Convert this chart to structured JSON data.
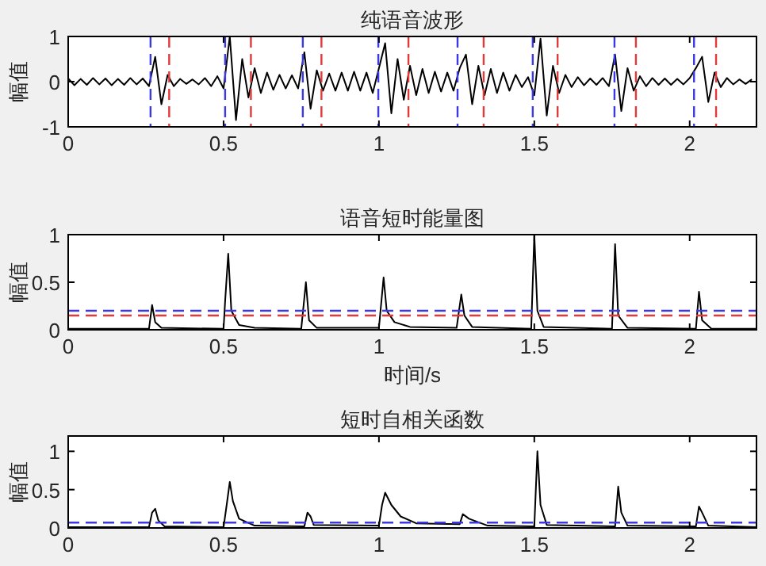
{
  "chart_data": [
    {
      "type": "line",
      "title": "纯语音波形",
      "ylabel": "幅值",
      "xlim": [
        0,
        2.215
      ],
      "ylim": [
        -1,
        1
      ],
      "xticks": [
        0,
        0.5,
        1,
        1.5,
        2
      ],
      "yticks": [
        -1,
        0,
        1
      ],
      "line_style": "solid",
      "marker": "none",
      "grid": false,
      "series": [
        {
          "color": "#000000",
          "x": [
            0,
            0.02,
            0.04,
            0.06,
            0.08,
            0.1,
            0.12,
            0.14,
            0.16,
            0.18,
            0.2,
            0.22,
            0.24,
            0.26,
            0.28,
            0.3,
            0.32,
            0.34,
            0.36,
            0.38,
            0.4,
            0.42,
            0.44,
            0.46,
            0.48,
            0.5,
            0.52,
            0.54,
            0.56,
            0.58,
            0.6,
            0.62,
            0.64,
            0.66,
            0.68,
            0.7,
            0.72,
            0.74,
            0.76,
            0.78,
            0.8,
            0.82,
            0.84,
            0.86,
            0.88,
            0.9,
            0.92,
            0.94,
            0.96,
            0.98,
            1,
            1.02,
            1.04,
            1.06,
            1.08,
            1.1,
            1.12,
            1.14,
            1.16,
            1.18,
            1.2,
            1.22,
            1.24,
            1.26,
            1.28,
            1.3,
            1.32,
            1.34,
            1.36,
            1.38,
            1.4,
            1.42,
            1.44,
            1.46,
            1.48,
            1.5,
            1.52,
            1.54,
            1.56,
            1.58,
            1.6,
            1.62,
            1.64,
            1.66,
            1.68,
            1.7,
            1.72,
            1.74,
            1.76,
            1.78,
            1.8,
            1.82,
            1.84,
            1.86,
            1.88,
            1.9,
            1.92,
            1.94,
            1.96,
            1.98,
            2,
            2.02,
            2.04,
            2.06,
            2.08,
            2.1,
            2.12,
            2.14,
            2.16,
            2.18,
            2.2
          ],
          "values": [
            0.07,
            -0.08,
            0.06,
            -0.07,
            0.08,
            -0.06,
            0.07,
            -0.08,
            0.06,
            -0.07,
            0.08,
            -0.06,
            0.07,
            -0.1,
            0.55,
            -0.5,
            0.15,
            -0.1,
            0.06,
            -0.05,
            0.05,
            -0.06,
            0.08,
            -0.1,
            0.12,
            -0.15,
            1.0,
            -0.85,
            0.5,
            -0.35,
            0.3,
            -0.25,
            0.2,
            -0.18,
            0.15,
            -0.15,
            0.14,
            -0.15,
            0.65,
            -0.6,
            0.25,
            -0.2,
            0.18,
            -0.2,
            0.2,
            -0.2,
            0.22,
            -0.2,
            0.2,
            -0.25,
            0.3,
            0.85,
            -0.7,
            0.5,
            -0.4,
            0.35,
            -0.3,
            0.28,
            -0.25,
            0.22,
            -0.22,
            0.2,
            -0.2,
            0.3,
            0.6,
            -0.5,
            0.35,
            -0.3,
            0.28,
            -0.25,
            0.2,
            -0.2,
            0.15,
            -0.12,
            0.1,
            -0.3,
            0.95,
            -0.75,
            0.35,
            -0.25,
            0.15,
            -0.12,
            0.1,
            -0.08,
            0.07,
            -0.07,
            0.08,
            -0.1,
            0.6,
            -0.65,
            0.3,
            -0.2,
            0.12,
            -0.1,
            0.08,
            -0.07,
            0.07,
            -0.07,
            0.06,
            -0.06,
            0.08,
            0.3,
            0.55,
            -0.45,
            0.2,
            -0.12,
            0.08,
            -0.06,
            0.05,
            -0.05,
            0.05
          ]
        }
      ],
      "ref_lines": [
        {
          "axis": "x",
          "value": 0.265,
          "color": "#3a3ae0",
          "line_style": "dashed"
        },
        {
          "axis": "x",
          "value": 0.325,
          "color": "#e03a3a",
          "line_style": "dashed"
        },
        {
          "axis": "x",
          "value": 0.505,
          "color": "#3a3ae0",
          "line_style": "dashed"
        },
        {
          "axis": "x",
          "value": 0.588,
          "color": "#e03a3a",
          "line_style": "dashed"
        },
        {
          "axis": "x",
          "value": 0.755,
          "color": "#3a3ae0",
          "line_style": "dashed"
        },
        {
          "axis": "x",
          "value": 0.815,
          "color": "#e03a3a",
          "line_style": "dashed"
        },
        {
          "axis": "x",
          "value": 0.998,
          "color": "#3a3ae0",
          "line_style": "dashed"
        },
        {
          "axis": "x",
          "value": 1.095,
          "color": "#e03a3a",
          "line_style": "dashed"
        },
        {
          "axis": "x",
          "value": 1.253,
          "color": "#3a3ae0",
          "line_style": "dashed"
        },
        {
          "axis": "x",
          "value": 1.337,
          "color": "#e03a3a",
          "line_style": "dashed"
        },
        {
          "axis": "x",
          "value": 1.495,
          "color": "#3a3ae0",
          "line_style": "dashed"
        },
        {
          "axis": "x",
          "value": 1.575,
          "color": "#e03a3a",
          "line_style": "dashed"
        },
        {
          "axis": "x",
          "value": 1.758,
          "color": "#3a3ae0",
          "line_style": "dashed"
        },
        {
          "axis": "x",
          "value": 1.827,
          "color": "#e03a3a",
          "line_style": "dashed"
        },
        {
          "axis": "x",
          "value": 2.014,
          "color": "#3a3ae0",
          "line_style": "dashed"
        },
        {
          "axis": "x",
          "value": 2.085,
          "color": "#e03a3a",
          "line_style": "dashed"
        }
      ]
    },
    {
      "type": "line",
      "title": "语音短时能量图",
      "ylabel": "幅值",
      "xlabel": "时间/s",
      "xlim": [
        0,
        2.215
      ],
      "ylim": [
        0,
        1
      ],
      "xticks": [
        0,
        0.5,
        1,
        1.5,
        2
      ],
      "yticks": [
        0,
        0.5,
        1
      ],
      "line_style": "solid",
      "marker": "none",
      "grid": false,
      "series": [
        {
          "color": "#000000",
          "x": [
            0,
            0.26,
            0.27,
            0.28,
            0.3,
            0.5,
            0.505,
            0.515,
            0.525,
            0.55,
            0.6,
            0.75,
            0.765,
            0.775,
            0.8,
            1.0,
            1.015,
            1.025,
            1.05,
            1.1,
            1.25,
            1.265,
            1.275,
            1.3,
            1.49,
            1.5,
            1.51,
            1.53,
            1.75,
            1.76,
            1.77,
            1.8,
            2.02,
            2.03,
            2.04,
            2.07,
            2.215
          ],
          "values": [
            0.01,
            0.01,
            0.26,
            0.08,
            0.02,
            0.01,
            0.3,
            0.8,
            0.2,
            0.05,
            0.02,
            0.01,
            0.5,
            0.1,
            0.02,
            0.02,
            0.55,
            0.2,
            0.08,
            0.03,
            0.02,
            0.37,
            0.15,
            0.03,
            0.01,
            1.0,
            0.2,
            0.03,
            0.01,
            0.9,
            0.15,
            0.02,
            0.01,
            0.4,
            0.1,
            0.01,
            0.01
          ]
        }
      ],
      "ref_lines": [
        {
          "axis": "y",
          "value": 0.2,
          "color": "#3a3ae0",
          "line_style": "dashed"
        },
        {
          "axis": "y",
          "value": 0.15,
          "color": "#e03a3a",
          "line_style": "dashed"
        }
      ]
    },
    {
      "type": "line",
      "title": "短时自相关函数",
      "ylabel": "幅值",
      "xlim": [
        0,
        2.215
      ],
      "ylim": [
        0,
        1.2
      ],
      "xticks": [
        0,
        0.5,
        1,
        1.5,
        2
      ],
      "yticks": [
        0,
        0.5,
        1
      ],
      "line_style": "solid",
      "marker": "none",
      "grid": false,
      "series": [
        {
          "color": "#000000",
          "x": [
            0,
            0.26,
            0.27,
            0.28,
            0.29,
            0.31,
            0.5,
            0.51,
            0.52,
            0.53,
            0.55,
            0.6,
            0.76,
            0.77,
            0.78,
            0.79,
            1.0,
            1.01,
            1.02,
            1.04,
            1.07,
            1.12,
            1.26,
            1.27,
            1.29,
            1.35,
            1.5,
            1.51,
            1.52,
            1.54,
            1.76,
            1.77,
            1.78,
            1.8,
            2.02,
            2.03,
            2.04,
            2.06,
            2.215
          ],
          "values": [
            0.01,
            0.01,
            0.2,
            0.25,
            0.1,
            0.02,
            0.01,
            0.3,
            0.6,
            0.35,
            0.12,
            0.03,
            0.02,
            0.2,
            0.15,
            0.04,
            0.03,
            0.3,
            0.46,
            0.3,
            0.15,
            0.06,
            0.05,
            0.18,
            0.12,
            0.03,
            0.02,
            1.0,
            0.3,
            0.04,
            0.02,
            0.54,
            0.2,
            0.03,
            0.02,
            0.28,
            0.2,
            0.03,
            0.01
          ]
        }
      ],
      "ref_lines": [
        {
          "axis": "y",
          "value": 0.07,
          "color": "#3a3ae0",
          "line_style": "dashed"
        }
      ]
    }
  ]
}
